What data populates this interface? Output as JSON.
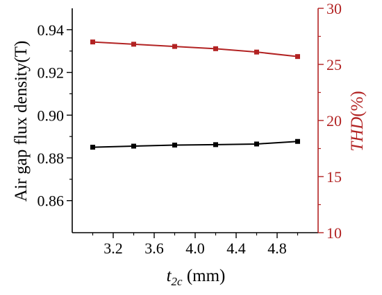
{
  "chart_data": {
    "type": "line",
    "title": "",
    "x": [
      3.0,
      3.4,
      3.8,
      4.2,
      4.6,
      5.0
    ],
    "xlabel": {
      "main": "t",
      "sub": "2c",
      "unit": " (mm)"
    },
    "xlim": [
      2.8,
      5.2
    ],
    "xticks": [
      3.2,
      3.6,
      4.0,
      4.4,
      4.8
    ],
    "ylabel_left": "Air gap flux density(T)",
    "ylim_left": [
      0.845,
      0.95
    ],
    "yticks_left": [
      0.86,
      0.88,
      0.9,
      0.92,
      0.94
    ],
    "ylabel_right": {
      "main": "THD",
      "unit": "(%)"
    },
    "ylim_right": [
      10,
      30
    ],
    "yticks_right": [
      10,
      15,
      20,
      25,
      30
    ],
    "grid": false,
    "legend": "none",
    "series": [
      {
        "axis": "left",
        "color": "#000000",
        "marker": "square",
        "values": [
          0.885,
          0.8855,
          0.886,
          0.8862,
          0.8865,
          0.8877
        ]
      },
      {
        "axis": "right",
        "color": "#b22222",
        "marker": "square",
        "values": [
          27.0,
          26.8,
          26.6,
          26.4,
          26.1,
          25.7
        ]
      }
    ]
  }
}
